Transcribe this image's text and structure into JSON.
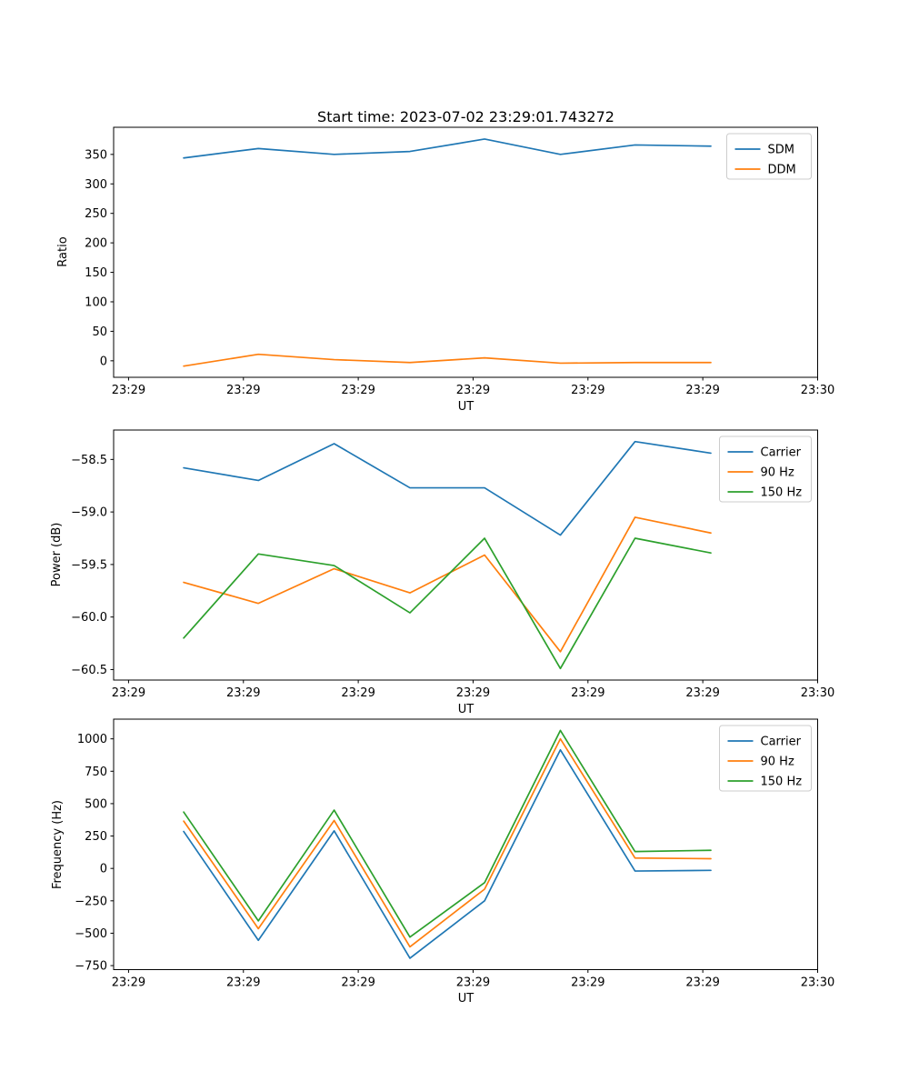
{
  "figure": {
    "title": "Start time: 2023-07-02 23:29:01.743272",
    "background": "#ffffff"
  },
  "colors": {
    "blue": "#1f77b4",
    "orange": "#ff7f0e",
    "green": "#2ca02c",
    "axis": "#000000",
    "legend_border": "#cccccc"
  },
  "chart_data": [
    {
      "type": "line",
      "name": "ratio",
      "title": "",
      "xlabel": "UT",
      "ylabel": "Ratio",
      "xlim": [
        -1.3,
        60
      ],
      "xticks": [
        0,
        10,
        20,
        30,
        40,
        50,
        60
      ],
      "xtick_labels": [
        "23:29",
        "23:29",
        "23:29",
        "23:29",
        "23:29",
        "23:29",
        "23:30"
      ],
      "ylim": [
        -28,
        396
      ],
      "yticks": [
        0,
        50,
        100,
        150,
        200,
        250,
        300,
        350
      ],
      "ytick_labels": [
        "0",
        "50",
        "100",
        "150",
        "200",
        "250",
        "300",
        "350"
      ],
      "x_seconds": [
        4.8,
        11.3,
        17.9,
        24.5,
        31.0,
        37.6,
        44.1,
        50.7
      ],
      "grid": false,
      "legend_position": "upper right",
      "legend": [
        "SDM",
        "DDM"
      ],
      "series": [
        {
          "name": "SDM",
          "color": "#1f77b4",
          "values": [
            344,
            360,
            350,
            355,
            376,
            350,
            366,
            364
          ]
        },
        {
          "name": "DDM",
          "color": "#ff7f0e",
          "values": [
            -9,
            11,
            2,
            -3,
            5,
            -4,
            -3,
            -3
          ]
        }
      ]
    },
    {
      "type": "line",
      "name": "power",
      "title": "",
      "xlabel": "UT",
      "ylabel": "Power (dB)",
      "xlim": [
        -1.3,
        60
      ],
      "xticks": [
        0,
        10,
        20,
        30,
        40,
        50,
        60
      ],
      "xtick_labels": [
        "23:29",
        "23:29",
        "23:29",
        "23:29",
        "23:29",
        "23:29",
        "23:30"
      ],
      "ylim": [
        -60.6,
        -58.22
      ],
      "yticks": [
        -60.5,
        -60.0,
        -59.5,
        -59.0,
        -58.5
      ],
      "ytick_labels": [
        "−60.5",
        "−60.0",
        "−59.5",
        "−59.0",
        "−58.5"
      ],
      "x_seconds": [
        4.8,
        11.3,
        17.9,
        24.5,
        31.0,
        37.6,
        44.1,
        50.7
      ],
      "grid": false,
      "legend_position": "upper right",
      "legend": [
        "Carrier",
        "90 Hz",
        "150 Hz"
      ],
      "series": [
        {
          "name": "Carrier",
          "color": "#1f77b4",
          "values": [
            -58.58,
            -58.7,
            -58.35,
            -58.77,
            -58.77,
            -59.22,
            -58.33,
            -58.44
          ]
        },
        {
          "name": "90 Hz",
          "color": "#ff7f0e",
          "values": [
            -59.67,
            -59.87,
            -59.54,
            -59.77,
            -59.41,
            -60.33,
            -59.05,
            -59.2
          ]
        },
        {
          "name": "150 Hz",
          "color": "#2ca02c",
          "values": [
            -60.2,
            -59.4,
            -59.51,
            -59.96,
            -59.25,
            -60.49,
            -59.25,
            -59.39
          ]
        }
      ]
    },
    {
      "type": "line",
      "name": "frequency",
      "title": "",
      "xlabel": "UT",
      "ylabel": "Frequency (Hz)",
      "xlim": [
        -1.3,
        60
      ],
      "xticks": [
        0,
        10,
        20,
        30,
        40,
        50,
        60
      ],
      "xtick_labels": [
        "23:29",
        "23:29",
        "23:29",
        "23:29",
        "23:29",
        "23:29",
        "23:30"
      ],
      "ylim": [
        -781,
        1152
      ],
      "yticks": [
        -750,
        -500,
        -250,
        0,
        250,
        500,
        750,
        1000
      ],
      "ytick_labels": [
        "−750",
        "−500",
        "−250",
        "0",
        "250",
        "500",
        "750",
        "1000"
      ],
      "x_seconds": [
        4.8,
        11.3,
        17.9,
        24.5,
        31.0,
        37.6,
        44.1,
        50.7
      ],
      "grid": false,
      "legend_position": "upper right",
      "legend": [
        "Carrier",
        "90 Hz",
        "150 Hz"
      ],
      "series": [
        {
          "name": "Carrier",
          "color": "#1f77b4",
          "values": [
            285,
            -555,
            290,
            -693,
            -250,
            915,
            -20,
            -15
          ]
        },
        {
          "name": "90 Hz",
          "color": "#ff7f0e",
          "values": [
            365,
            -465,
            370,
            -605,
            -160,
            1000,
            80,
            75
          ]
        },
        {
          "name": "150 Hz",
          "color": "#2ca02c",
          "values": [
            435,
            -405,
            450,
            -530,
            -110,
            1065,
            130,
            140
          ]
        }
      ]
    }
  ]
}
